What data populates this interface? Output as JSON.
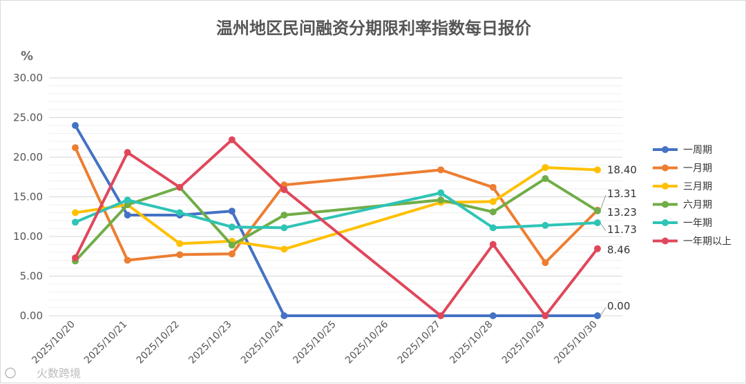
{
  "chart_data": {
    "type": "line",
    "title": "温州地区民间融资分期限利率指数每日报价",
    "unit": "%",
    "categories": [
      "2025/10/20",
      "2025/10/21",
      "2025/10/22",
      "2025/10/23",
      "2025/10/24",
      "2025/10/25",
      "2025/10/26",
      "2025/10/27",
      "2025/10/28",
      "2025/10/29",
      "2025/10/30"
    ],
    "ylim": [
      0,
      30
    ],
    "yticks": [
      "0.00",
      "5.00",
      "10.00",
      "15.00",
      "20.00",
      "25.00",
      "30.00"
    ],
    "grid": true,
    "legend_position": "right",
    "series": [
      {
        "name": "一周期",
        "color": "#4472c4",
        "values": [
          24.0,
          12.7,
          12.7,
          13.2,
          0.0,
          null,
          null,
          null,
          0.0,
          null,
          0.0
        ]
      },
      {
        "name": "一月期",
        "color": "#ed7d31",
        "values": [
          21.2,
          7.0,
          7.7,
          7.8,
          16.5,
          null,
          null,
          18.4,
          16.2,
          6.7,
          13.31
        ]
      },
      {
        "name": "三月期",
        "color": "#ffc000",
        "values": [
          13.0,
          14.0,
          9.1,
          9.4,
          8.4,
          null,
          null,
          14.3,
          14.4,
          18.7,
          18.4
        ]
      },
      {
        "name": "六月期",
        "color": "#70ad47",
        "values": [
          6.9,
          14.0,
          16.2,
          8.9,
          12.7,
          null,
          null,
          14.6,
          13.1,
          17.3,
          13.23
        ]
      },
      {
        "name": "一年期",
        "color": "#2ec4b6",
        "values": [
          11.8,
          14.6,
          13.0,
          11.2,
          11.1,
          null,
          null,
          15.5,
          11.1,
          11.4,
          11.73
        ]
      },
      {
        "name": "一年期以上",
        "color": "#e0475b",
        "values": [
          7.3,
          20.6,
          16.2,
          22.2,
          15.9,
          null,
          null,
          0.0,
          9.0,
          0.0,
          8.46
        ]
      }
    ],
    "end_labels": [
      {
        "text": "18.40",
        "value": 18.4
      },
      {
        "text": "13.31",
        "value": 13.31
      },
      {
        "text": "13.23",
        "value": 13.23
      },
      {
        "text": "11.73",
        "value": 11.73
      },
      {
        "text": "8.46",
        "value": 8.46
      },
      {
        "text": "0.00",
        "value": 0.0
      }
    ],
    "watermark": "火数跨境"
  }
}
